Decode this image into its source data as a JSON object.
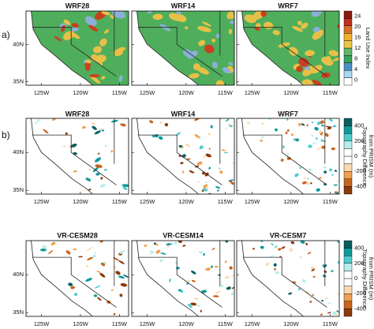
{
  "panel_labels": [
    "a)",
    "b)"
  ],
  "rows": [
    {
      "titles": [
        "WRF28",
        "WRF14",
        "WRF7"
      ],
      "lat_labels": [
        "40N",
        "35N"
      ],
      "lon_labels": [
        "125W",
        "120W",
        "115W"
      ],
      "colorbar": {
        "ticks": [
          "24",
          "20",
          "16",
          "12",
          "8",
          "4",
          "0"
        ],
        "label": [
          "Land Use Index"
        ]
      }
    },
    {
      "titles": [
        "WRF28",
        "WRF14",
        "WRF7"
      ],
      "lat_labels": [
        "40N",
        "35N"
      ],
      "lon_labels": [
        "125W",
        "120W",
        "115W"
      ],
      "colorbar": {
        "ticks": [
          "400",
          "200",
          "0",
          "-200",
          "-400"
        ],
        "label": [
          "Topography Difference",
          "from PRISM (m)"
        ]
      }
    },
    {
      "titles": [
        "VR-CESM28",
        "VR-CESM14",
        "VR-CESM7"
      ],
      "lat_labels": [
        "40N",
        "35N"
      ],
      "lon_labels": [
        "125W",
        "120W",
        "115W"
      ],
      "colorbar": {
        "ticks": [
          "400",
          "200",
          "0",
          "-200",
          "-400"
        ],
        "label": [
          "Topography Difference",
          "from PRISM (m)"
        ]
      }
    }
  ]
}
